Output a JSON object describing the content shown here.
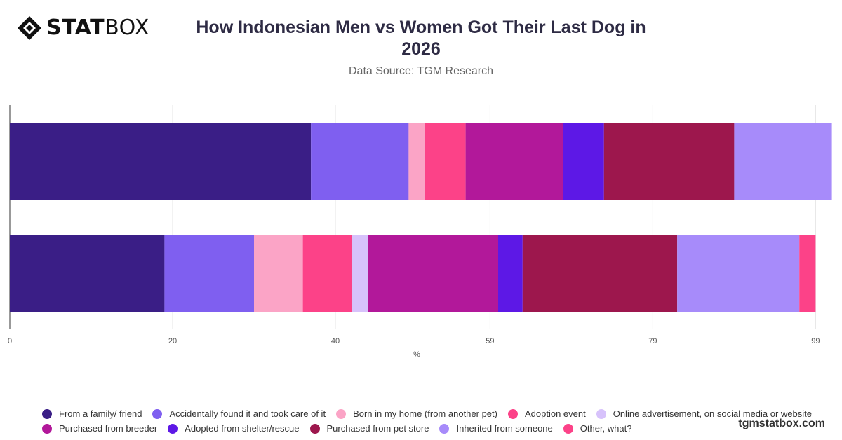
{
  "logo": {
    "bold": "STAT",
    "light": "BOX",
    "icon": "diamond-logo-icon"
  },
  "footer": {
    "site": "tgmstatbox.com"
  },
  "chart_data": {
    "type": "bar",
    "orientation": "horizontal",
    "stacked": true,
    "title": "How Indonesian Men vs Women Got Their Last Dog in 2026",
    "subtitle": "Data Source: TGM Research",
    "xlabel": "%",
    "ylabel": "",
    "xlim": [
      0,
      100
    ],
    "xticks": [
      0,
      20,
      40,
      59,
      79,
      99
    ],
    "grid": true,
    "legend_position": "bottom",
    "categories": [
      "",
      ""
    ],
    "series": [
      {
        "name": "From a family/ friend",
        "color": "#3a1e86",
        "values": [
          37,
          19
        ]
      },
      {
        "name": "Accidentally found it and took care of it",
        "color": "#7f5ff0",
        "values": [
          12,
          11
        ]
      },
      {
        "name": "Born in my home (from another pet)",
        "color": "#fba4c6",
        "values": [
          2,
          6
        ]
      },
      {
        "name": "Adoption event",
        "color": "#fc4288",
        "values": [
          5,
          6
        ]
      },
      {
        "name": "Online advertisement, on social media or website",
        "color": "#d7c2fb",
        "values": [
          0,
          2
        ]
      },
      {
        "name": "Purchased from breeder",
        "color": "#b2189a",
        "values": [
          12,
          16
        ]
      },
      {
        "name": "Adopted from shelter/rescue",
        "color": "#5d18e6",
        "values": [
          5,
          3
        ]
      },
      {
        "name": "Purchased from pet store",
        "color": "#9d174d",
        "values": [
          16,
          19
        ]
      },
      {
        "name": "Inherited from someone",
        "color": "#a78bfa",
        "values": [
          12,
          15
        ]
      },
      {
        "name": "Other, what?",
        "color": "#fc4288",
        "values": [
          0,
          2
        ]
      }
    ]
  }
}
